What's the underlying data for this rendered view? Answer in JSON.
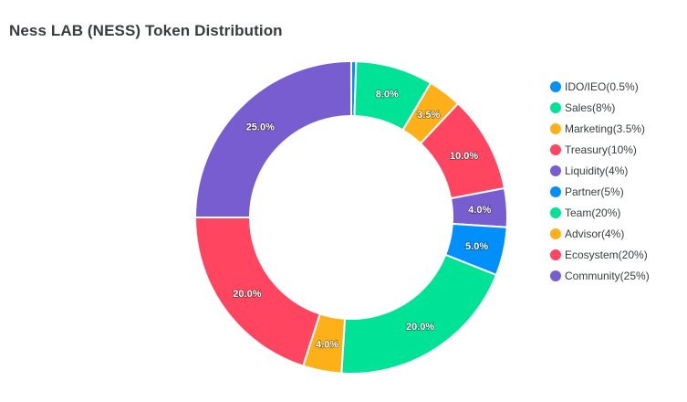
{
  "chart_data": {
    "type": "pie",
    "variant": "donut",
    "title": "Ness LAB (NESS) Token Distribution",
    "legend_position": "right",
    "slices": [
      {
        "label": "IDO/IEO(0.5%)",
        "value": 0.5,
        "data_label": "",
        "color": "#008ffb"
      },
      {
        "label": "Sales(8%)",
        "value": 8,
        "data_label": "8.0%",
        "color": "#00e396"
      },
      {
        "label": "Marketing(3.5%)",
        "value": 3.5,
        "data_label": "3.5%",
        "color": "#feb019"
      },
      {
        "label": "Treasury(10%)",
        "value": 10,
        "data_label": "10.0%",
        "color": "#ff4560"
      },
      {
        "label": "Liquidity(4%)",
        "value": 4,
        "data_label": "4.0%",
        "color": "#775dd0"
      },
      {
        "label": "Partner(5%)",
        "value": 5,
        "data_label": "5.0%",
        "color": "#008ffb"
      },
      {
        "label": "Team(20%)",
        "value": 20,
        "data_label": "20.0%",
        "color": "#00e396"
      },
      {
        "label": "Advisor(4%)",
        "value": 4,
        "data_label": "4.0%",
        "color": "#feb019"
      },
      {
        "label": "Ecosystem(20%)",
        "value": 20,
        "data_label": "20.0%",
        "color": "#ff4560"
      },
      {
        "label": "Community(25%)",
        "value": 25,
        "data_label": "25.0%",
        "color": "#775dd0"
      }
    ]
  }
}
